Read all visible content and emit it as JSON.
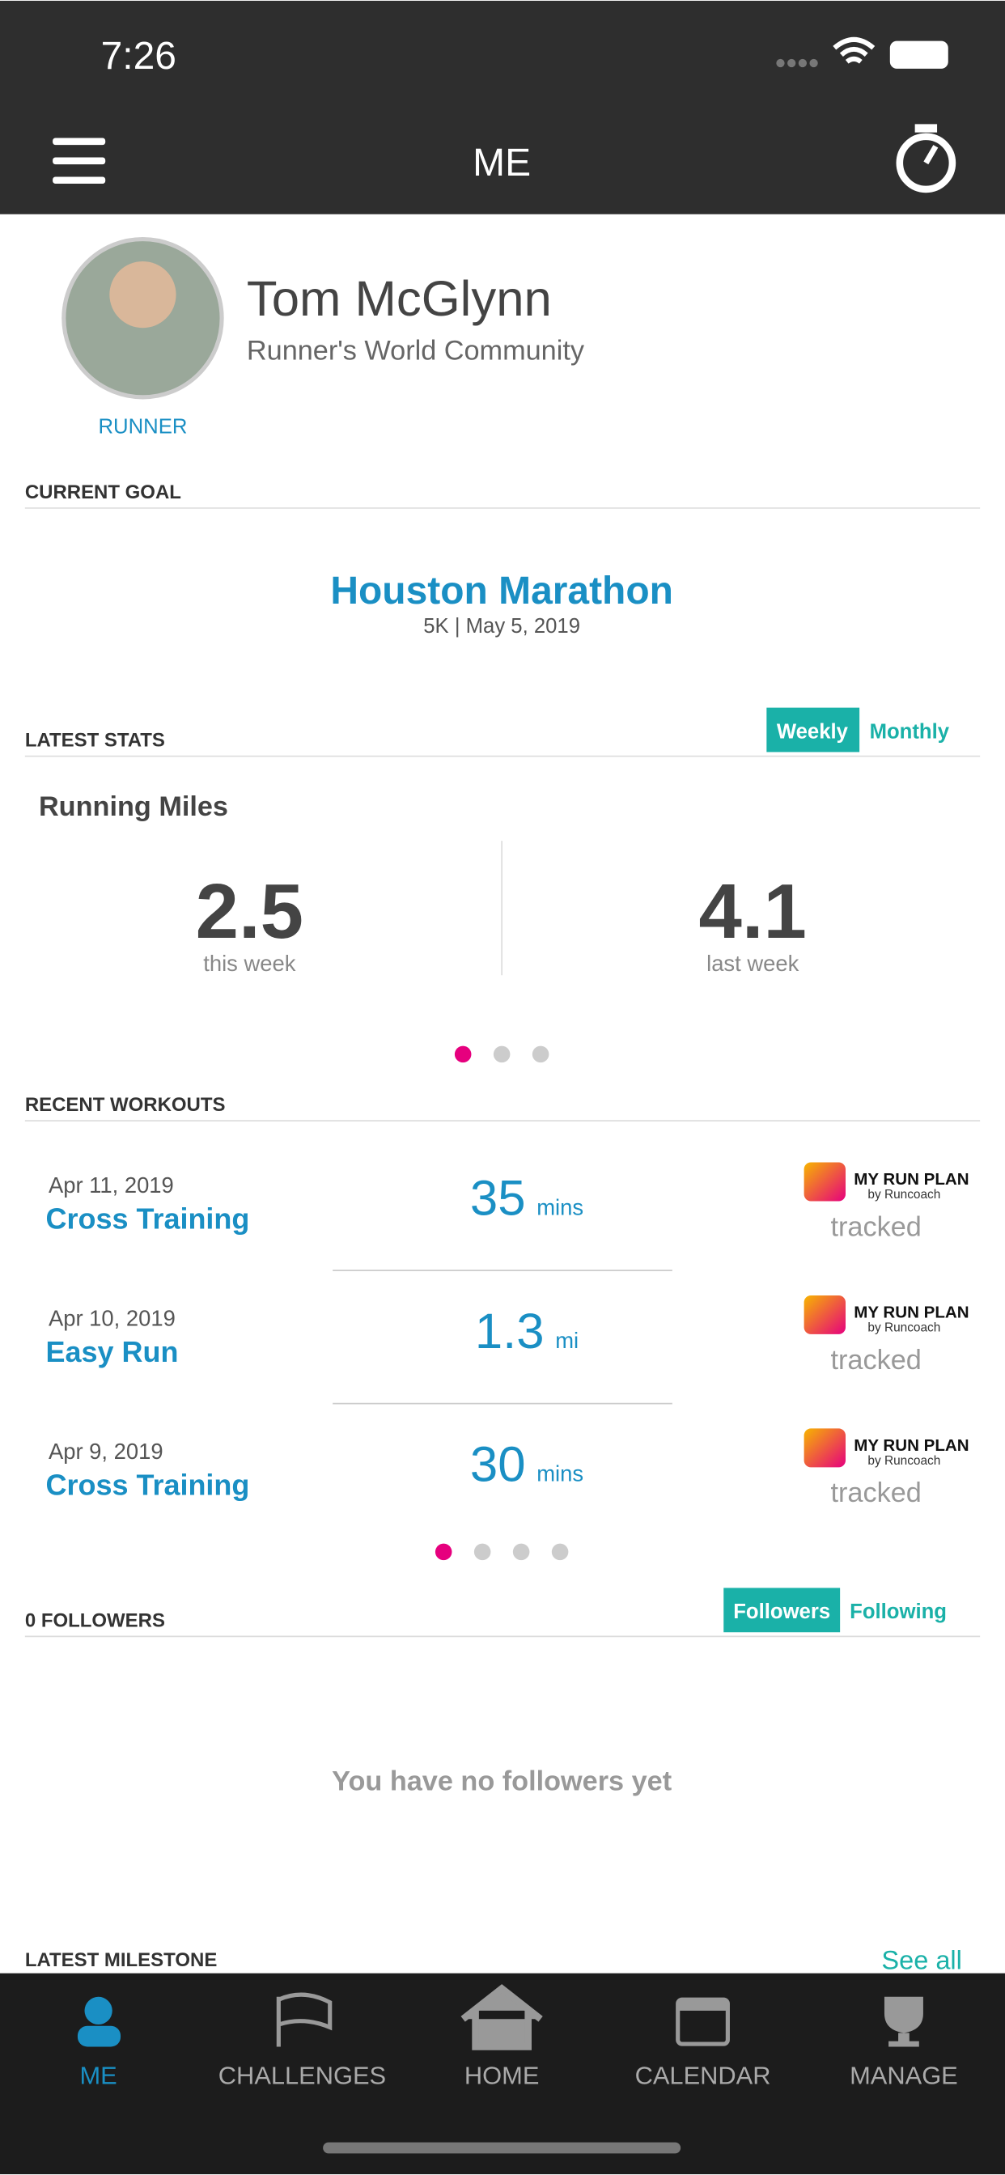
{
  "status_bar": {
    "time": "7:26"
  },
  "header": {
    "title": "ME"
  },
  "profile": {
    "name": "Tom McGlynn",
    "subtitle": "Runner's World Community",
    "role": "RUNNER"
  },
  "current_goal": {
    "heading": "CURRENT GOAL",
    "name": "Houston Marathon",
    "details": "5K | May 5, 2019"
  },
  "latest_stats": {
    "heading": "LATEST STATS",
    "tabs": [
      "Weekly",
      "Monthly"
    ],
    "metric": "Running Miles",
    "stats": [
      {
        "value": "2.5",
        "label": "this week"
      },
      {
        "value": "4.1",
        "label": "last week"
      }
    ]
  },
  "recent_workouts": {
    "heading": "RECENT WORKOUTS",
    "items": [
      {
        "date": "Apr 11, 2019",
        "name": "Cross Training",
        "amount": "35",
        "unit": "mins",
        "brand": "MY RUN PLAN",
        "brand_sub": "by Runcoach",
        "status": "tracked"
      },
      {
        "date": "Apr 10, 2019",
        "name": "Easy Run",
        "amount": "1.3",
        "unit": "mi",
        "brand": "MY RUN PLAN",
        "brand_sub": "by Runcoach",
        "status": "tracked"
      },
      {
        "date": "Apr 9, 2019",
        "name": "Cross Training",
        "amount": "30",
        "unit": "mins",
        "brand": "MY RUN PLAN",
        "brand_sub": "by Runcoach",
        "status": "tracked"
      }
    ]
  },
  "followers": {
    "heading": "0 FOLLOWERS",
    "tabs": [
      "Followers",
      "Following"
    ],
    "empty_message": "You have no followers yet"
  },
  "milestone": {
    "heading": "LATEST MILESTONE",
    "link": "See all"
  },
  "nav": [
    "ME",
    "CHALLENGES",
    "HOME",
    "CALENDAR",
    "MANAGE"
  ]
}
